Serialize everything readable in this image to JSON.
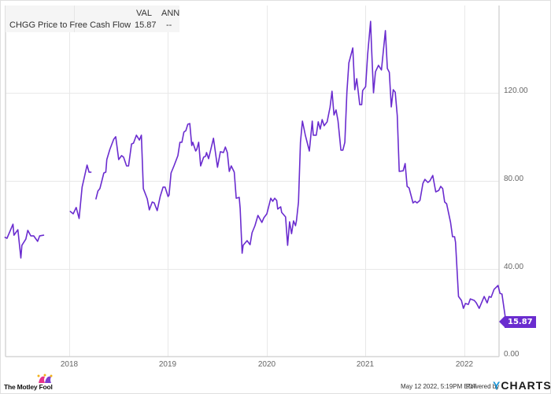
{
  "legend": {
    "col_val": "VAL",
    "col_ann": "ANN",
    "series_name": "CHGG Price to Free Cash Flow",
    "value": "15.87",
    "ann": "--"
  },
  "y_axis": {
    "ticks": [
      "120.00",
      "80.00",
      "40.00",
      "0.00"
    ]
  },
  "x_axis": {
    "ticks": [
      "2018",
      "2019",
      "2020",
      "2021",
      "2022"
    ]
  },
  "last_value_badge": "15.87",
  "footer": {
    "timestamp": "May 12 2022, 5:19PM EDT.",
    "powered_by": "Powered by",
    "brand_y": "Y",
    "brand_rest": "CHARTS",
    "logo_text": "The Motley Fool"
  },
  "colors": {
    "line": "#6a2ccf",
    "grid": "#e8e8e8",
    "legend_bg": "#f5f5f5"
  },
  "chart_data": {
    "type": "line",
    "title": "CHGG Price to Free Cash Flow",
    "xlabel": "",
    "ylabel": "",
    "ylim": [
      0,
      160
    ],
    "xlim": [
      2017.35,
      2022.42
    ],
    "grid": true,
    "legend_position": "top-left",
    "y_ticks": [
      0,
      40,
      80,
      120
    ],
    "x_ticks": [
      2018,
      2019,
      2020,
      2021,
      2022
    ],
    "series": [
      {
        "name": "CHGG Price to Free Cash Flow",
        "segments": [
          [
            [
              2017.35,
              54.1
            ],
            [
              2017.37,
              53.7
            ],
            [
              2017.43,
              60.1
            ],
            [
              2017.44,
              55.1
            ],
            [
              2017.48,
              57.6
            ],
            [
              2017.51,
              44.7
            ],
            [
              2017.52,
              50.5
            ],
            [
              2017.56,
              53.3
            ],
            [
              2017.58,
              57.3
            ],
            [
              2017.61,
              54.8
            ],
            [
              2017.64,
              54.8
            ],
            [
              2017.68,
              52.3
            ],
            [
              2017.7,
              54.8
            ],
            [
              2017.74,
              55.1
            ]
          ],
          [
            [
              2018.01,
              65.9
            ],
            [
              2018.04,
              64.8
            ],
            [
              2018.07,
              67.7
            ],
            [
              2018.1,
              62.7
            ],
            [
              2018.13,
              77.0
            ],
            [
              2018.15,
              80.9
            ],
            [
              2018.18,
              87.0
            ],
            [
              2018.2,
              83.8
            ],
            [
              2018.22,
              83.8
            ]
          ],
          [
            [
              2018.27,
              71.6
            ],
            [
              2018.29,
              75.2
            ],
            [
              2018.31,
              76.3
            ],
            [
              2018.33,
              79.8
            ],
            [
              2018.35,
              83.4
            ],
            [
              2018.37,
              83.8
            ],
            [
              2018.38,
              89.5
            ],
            [
              2018.41,
              94.1
            ],
            [
              2018.45,
              98.8
            ],
            [
              2018.47,
              99.9
            ],
            [
              2018.5,
              89.5
            ],
            [
              2018.53,
              91.3
            ],
            [
              2018.55,
              90.6
            ],
            [
              2018.58,
              86.6
            ],
            [
              2018.6,
              86.6
            ],
            [
              2018.63,
              96.6
            ],
            [
              2018.65,
              97.0
            ],
            [
              2018.68,
              100.6
            ],
            [
              2018.71,
              98.4
            ],
            [
              2018.73,
              100.6
            ],
            [
              2018.75,
              76.3
            ],
            [
              2018.79,
              71.6
            ],
            [
              2018.81,
              66.6
            ],
            [
              2018.84,
              70.2
            ],
            [
              2018.86,
              69.8
            ],
            [
              2018.89,
              66.3
            ],
            [
              2018.92,
              72.7
            ],
            [
              2018.95,
              77.0
            ],
            [
              2018.97,
              77.0
            ],
            [
              2019.0,
              72.7
            ],
            [
              2019.01,
              73.4
            ],
            [
              2019.03,
              83.4
            ],
            [
              2019.06,
              86.6
            ],
            [
              2019.1,
              91.3
            ],
            [
              2019.12,
              97.4
            ],
            [
              2019.14,
              97.4
            ],
            [
              2019.16,
              102.0
            ],
            [
              2019.18,
              102.7
            ],
            [
              2019.2,
              105.6
            ],
            [
              2019.22,
              105.9
            ],
            [
              2019.24,
              95.9
            ],
            [
              2019.25,
              97.4
            ],
            [
              2019.28,
              93.4
            ],
            [
              2019.29,
              94.1
            ],
            [
              2019.31,
              97.4
            ],
            [
              2019.33,
              86.6
            ],
            [
              2019.36,
              90.6
            ],
            [
              2019.38,
              91.0
            ],
            [
              2019.39,
              92.7
            ],
            [
              2019.41,
              89.9
            ],
            [
              2019.46,
              99.2
            ],
            [
              2019.5,
              86.0
            ],
            [
              2019.53,
              93.1
            ],
            [
              2019.56,
              92.7
            ],
            [
              2019.58,
              95.2
            ],
            [
              2019.6,
              92.7
            ],
            [
              2019.62,
              84.1
            ],
            [
              2019.64,
              86.6
            ],
            [
              2019.67,
              83.8
            ],
            [
              2019.69,
              71.9
            ],
            [
              2019.72,
              72.3
            ],
            [
              2019.73,
              67.3
            ],
            [
              2019.75,
              46.9
            ],
            [
              2019.76,
              50.5
            ],
            [
              2019.8,
              52.6
            ],
            [
              2019.83,
              50.8
            ],
            [
              2019.85,
              56.2
            ],
            [
              2019.88,
              59.4
            ],
            [
              2019.91,
              64.1
            ],
            [
              2019.95,
              60.9
            ],
            [
              2019.97,
              63.0
            ],
            [
              2020.0,
              64.8
            ],
            [
              2020.04,
              71.9
            ],
            [
              2020.06,
              70.5
            ],
            [
              2020.08,
              71.9
            ],
            [
              2020.1,
              70.9
            ],
            [
              2020.11,
              67.0
            ],
            [
              2020.14,
              68.0
            ],
            [
              2020.15,
              65.5
            ],
            [
              2020.19,
              63.4
            ],
            [
              2020.21,
              50.5
            ],
            [
              2020.23,
              61.2
            ],
            [
              2020.25,
              55.8
            ],
            [
              2020.27,
              61.6
            ],
            [
              2020.29,
              59.4
            ],
            [
              2020.3,
              61.6
            ],
            [
              2020.32,
              70.2
            ],
            [
              2020.34,
              97.4
            ],
            [
              2020.36,
              107.0
            ],
            [
              2020.39,
              100.6
            ],
            [
              2020.43,
              93.4
            ],
            [
              2020.46,
              107.0
            ],
            [
              2020.47,
              100.6
            ],
            [
              2020.5,
              100.6
            ],
            [
              2020.52,
              106.7
            ],
            [
              2020.54,
              103.4
            ],
            [
              2020.56,
              107.7
            ],
            [
              2020.58,
              104.9
            ],
            [
              2020.61,
              106.7
            ],
            [
              2020.64,
              113.3
            ],
            [
              2020.66,
              120.6
            ],
            [
              2020.68,
              109.8
            ],
            [
              2020.7,
              112.1
            ],
            [
              2020.72,
              107.2
            ],
            [
              2020.75,
              93.8
            ],
            [
              2020.77,
              93.8
            ],
            [
              2020.79,
              97.4
            ],
            [
              2020.81,
              120.2
            ],
            [
              2020.83,
              133.5
            ],
            [
              2020.87,
              140.3
            ],
            [
              2020.89,
              121.3
            ],
            [
              2020.91,
              126.3
            ],
            [
              2020.94,
              114.5
            ],
            [
              2020.96,
              114.5
            ],
            [
              2020.97,
              120.9
            ],
            [
              2021.0,
              122.7
            ],
            [
              2021.02,
              137.0
            ],
            [
              2021.05,
              152.4
            ],
            [
              2021.06,
              140.7
            ],
            [
              2021.08,
              119.9
            ],
            [
              2021.1,
              129.5
            ],
            [
              2021.13,
              132.4
            ],
            [
              2021.16,
              130.3
            ],
            [
              2021.17,
              134.6
            ],
            [
              2021.2,
              148.2
            ],
            [
              2021.22,
              131.0
            ],
            [
              2021.24,
              129.2
            ],
            [
              2021.26,
              113.5
            ],
            [
              2021.28,
              121.3
            ],
            [
              2021.3,
              120.2
            ],
            [
              2021.32,
              109.5
            ],
            [
              2021.34,
              84.1
            ],
            [
              2021.38,
              84.4
            ],
            [
              2021.4,
              87.7
            ],
            [
              2021.42,
              77.3
            ],
            [
              2021.44,
              76.6
            ],
            [
              2021.48,
              69.8
            ],
            [
              2021.5,
              70.5
            ],
            [
              2021.52,
              69.8
            ],
            [
              2021.55,
              70.9
            ],
            [
              2021.58,
              78.7
            ],
            [
              2021.6,
              80.5
            ],
            [
              2021.63,
              79.1
            ],
            [
              2021.65,
              79.8
            ],
            [
              2021.68,
              82.3
            ],
            [
              2021.71,
              74.8
            ],
            [
              2021.74,
              75.5
            ],
            [
              2021.76,
              77.3
            ],
            [
              2021.78,
              76.3
            ],
            [
              2021.8,
              70.2
            ],
            [
              2021.82,
              69.4
            ],
            [
              2021.86,
              60.9
            ],
            [
              2021.88,
              54.4
            ],
            [
              2021.9,
              54.4
            ],
            [
              2021.91,
              51.9
            ],
            [
              2021.94,
              27.2
            ],
            [
              2021.97,
              25.4
            ],
            [
              2021.99,
              21.8
            ],
            [
              2022.01,
              24.0
            ],
            [
              2022.04,
              23.6
            ],
            [
              2022.06,
              26.1
            ],
            [
              2022.1,
              25.4
            ],
            [
              2022.12,
              24.3
            ],
            [
              2022.15,
              21.8
            ],
            [
              2022.2,
              27.2
            ],
            [
              2022.23,
              24.3
            ],
            [
              2022.25,
              27.2
            ],
            [
              2022.27,
              26.8
            ],
            [
              2022.3,
              30.4
            ],
            [
              2022.34,
              32.2
            ],
            [
              2022.36,
              28.6
            ],
            [
              2022.38,
              28.3
            ],
            [
              2022.42,
              15.87
            ]
          ]
        ]
      }
    ],
    "last_value": 15.87
  }
}
